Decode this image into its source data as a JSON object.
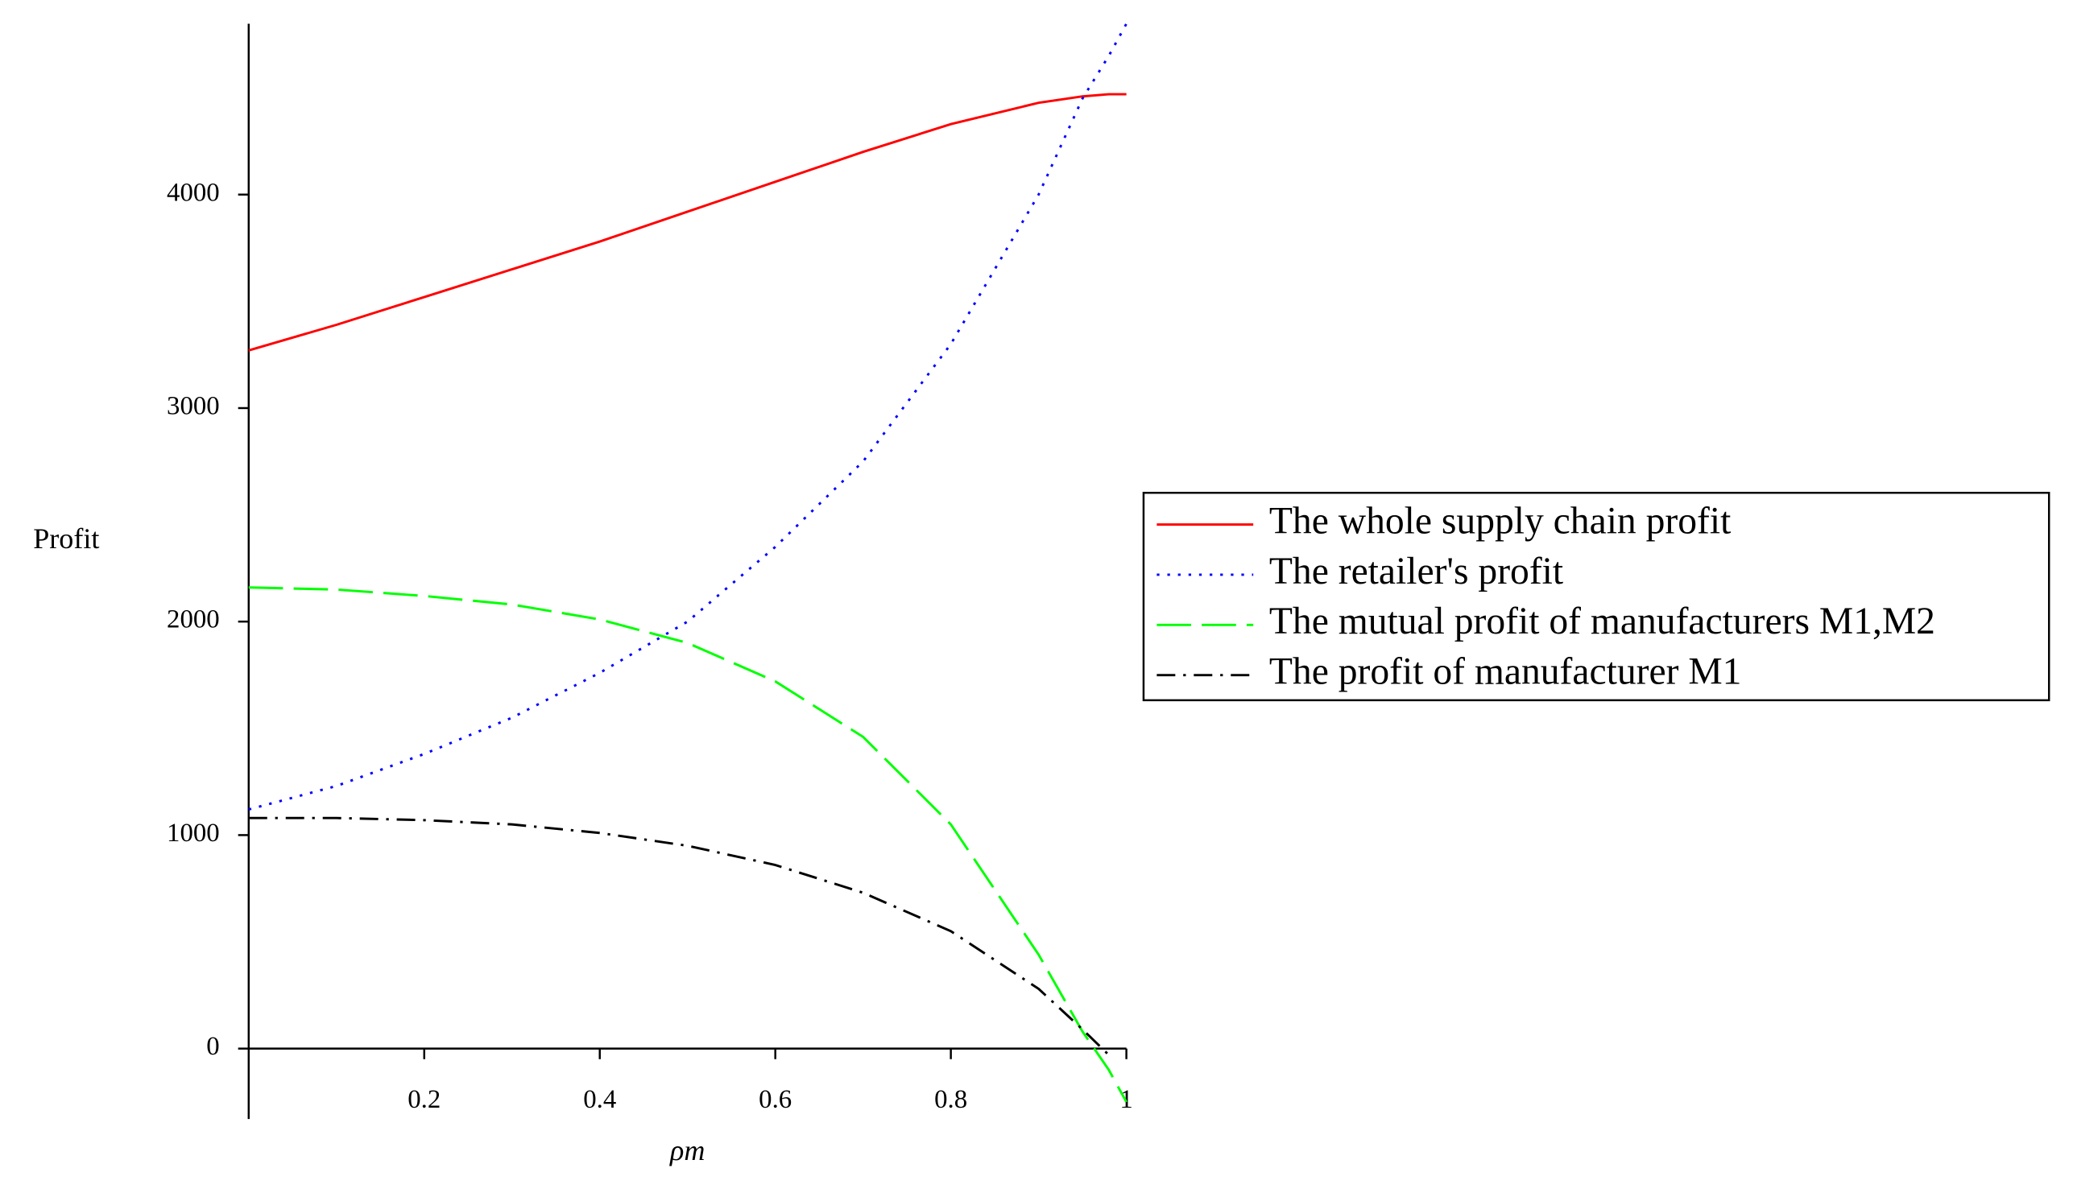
{
  "chart_data": {
    "type": "line",
    "xlabel": "ρm",
    "ylabel": "Profit",
    "x": [
      0,
      0.1,
      0.2,
      0.3,
      0.4,
      0.5,
      0.6,
      0.7,
      0.8,
      0.9,
      0.95,
      0.98,
      1
    ],
    "series": [
      {
        "name": "The whole supply chain profit",
        "color": "#ff0000",
        "dash": "solid",
        "values": [
          3270,
          3390,
          3520,
          3650,
          3780,
          3920,
          4060,
          4200,
          4330,
          4430,
          4460,
          4470,
          4470
        ]
      },
      {
        "name": "The retailer's profit",
        "color": "#0000ff",
        "dash": "dot",
        "values": [
          1120,
          1230,
          1380,
          1550,
          1760,
          2000,
          2350,
          2750,
          3300,
          4000,
          4450,
          4650,
          4800
        ]
      },
      {
        "name": "The mutual profit of manufacturers M1,M2",
        "color": "#00ff00",
        "dash": "dash",
        "values": [
          2160,
          2150,
          2120,
          2080,
          2010,
          1900,
          1720,
          1460,
          1050,
          440,
          80,
          -100,
          -250
        ]
      },
      {
        "name": "The profit of manufacturer M1",
        "color": "#000000",
        "dash": "dashdot",
        "values": [
          1080,
          1080,
          1070,
          1050,
          1010,
          950,
          860,
          730,
          550,
          280,
          90,
          -30,
          null
        ]
      }
    ],
    "xlim": [
      0,
      1
    ],
    "ylim": [
      -330,
      4800
    ],
    "xticks": [
      0.2,
      0.4,
      0.6,
      0.8,
      1
    ],
    "yticks": [
      0,
      1000,
      2000,
      3000,
      4000
    ],
    "legend": "right"
  }
}
